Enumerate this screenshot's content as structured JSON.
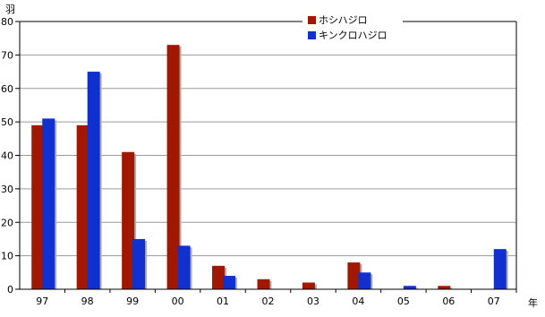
{
  "chart_data": {
    "type": "bar",
    "categories": [
      "97",
      "98",
      "99",
      "00",
      "01",
      "02",
      "03",
      "04",
      "05",
      "06",
      "07"
    ],
    "series": [
      {
        "name": "ホシハジロ",
        "color": "#a01800",
        "values": [
          49,
          49,
          41,
          73,
          7,
          3,
          2,
          8,
          0,
          1,
          0
        ]
      },
      {
        "name": "キンクロハジロ",
        "color": "#1030d0",
        "values": [
          51,
          65,
          15,
          13,
          4,
          0,
          0,
          5,
          1,
          0,
          12
        ]
      }
    ],
    "ylim": [
      0,
      80
    ],
    "yticks": [
      0,
      10,
      20,
      30,
      40,
      50,
      60,
      70,
      80
    ],
    "yticks_display": [
      "0",
      "10",
      "20",
      "30",
      "40",
      "50",
      "60",
      "70",
      "80"
    ],
    "ylabel": "羽",
    "xlabel": "年",
    "grid": true,
    "legend_position": "top-right"
  }
}
